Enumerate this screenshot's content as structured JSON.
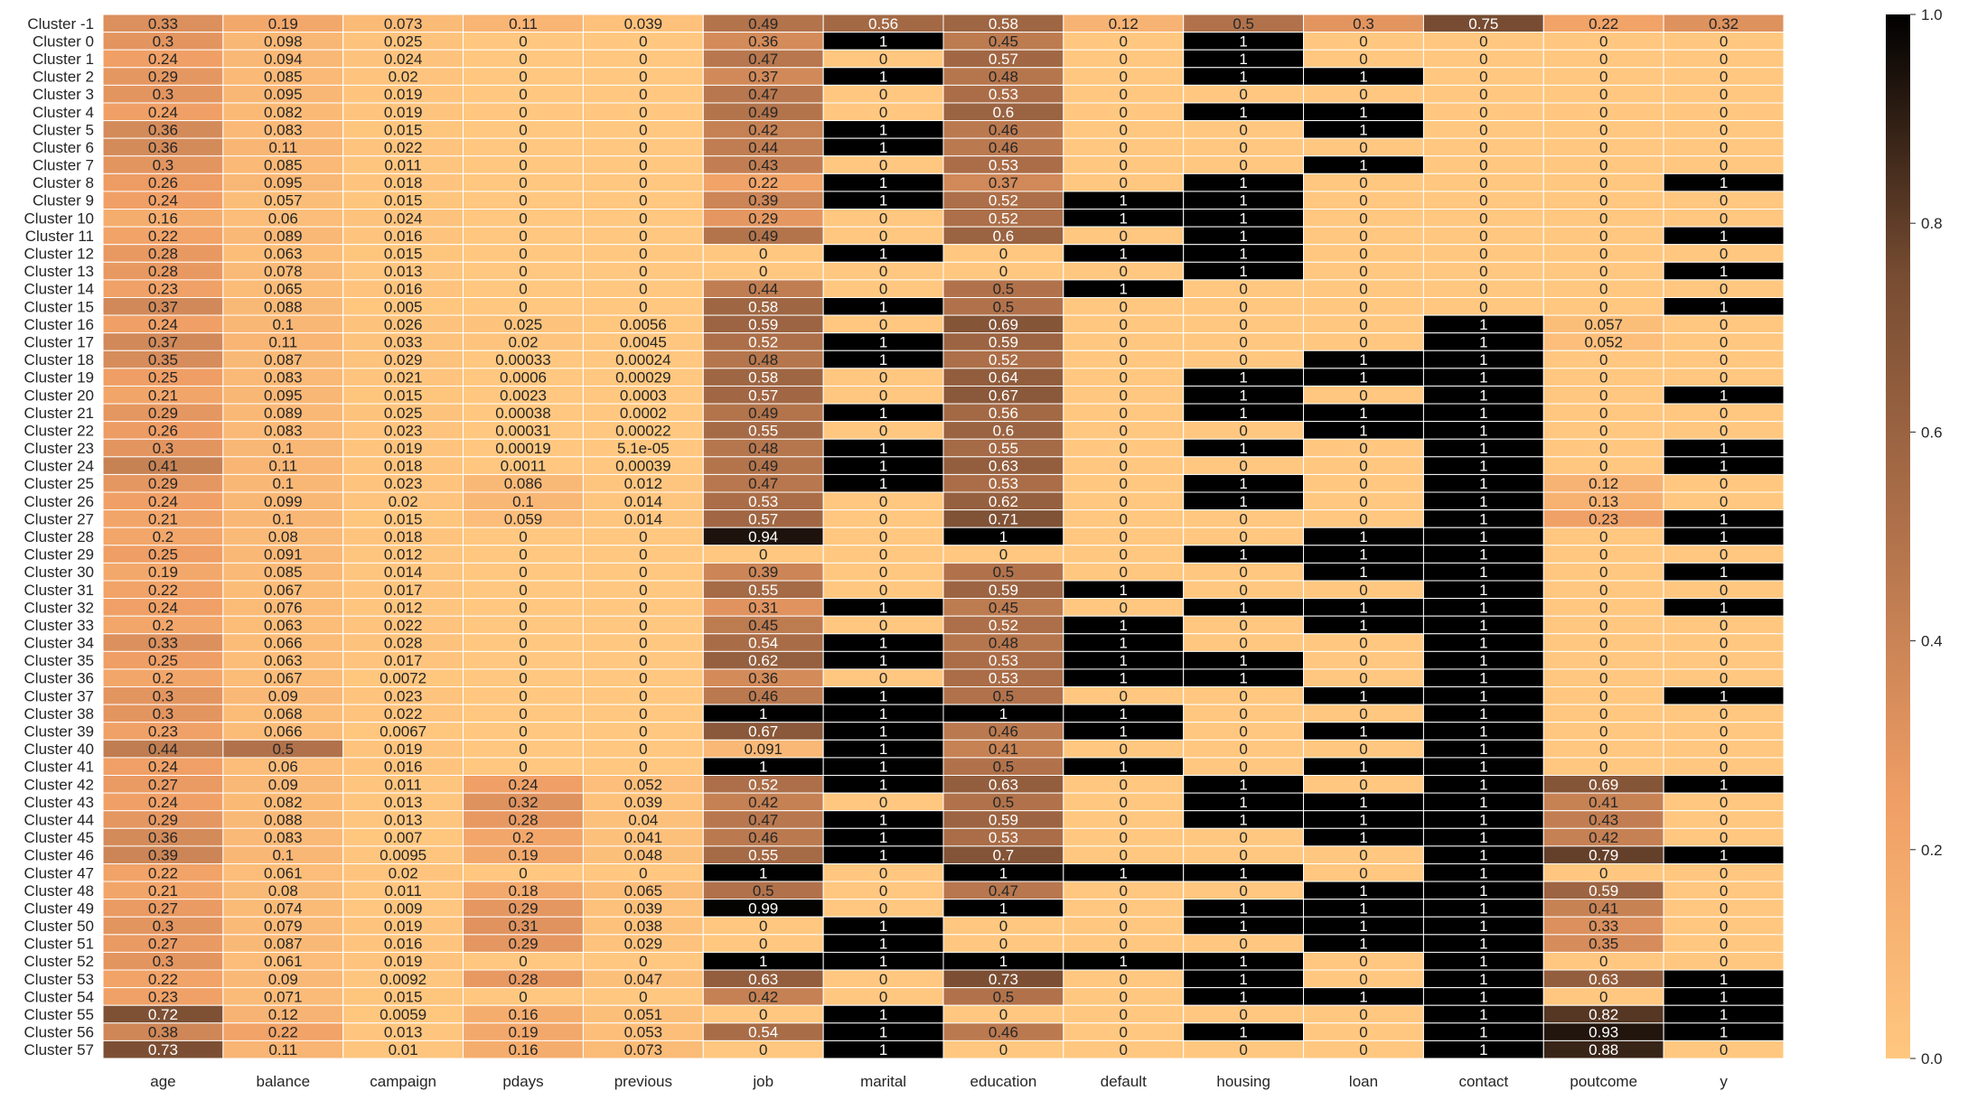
{
  "chart_data": {
    "type": "heatmap",
    "title": "",
    "xlabel": "",
    "ylabel": "",
    "columns": [
      "age",
      "balance",
      "campaign",
      "pdays",
      "previous",
      "job",
      "marital",
      "education",
      "default",
      "housing",
      "loan",
      "contact",
      "poutcome",
      "y"
    ],
    "rows": [
      "Cluster -1",
      "Cluster 0",
      "Cluster 1",
      "Cluster 2",
      "Cluster 3",
      "Cluster 4",
      "Cluster 5",
      "Cluster 6",
      "Cluster 7",
      "Cluster 8",
      "Cluster 9",
      "Cluster 10",
      "Cluster 11",
      "Cluster 12",
      "Cluster 13",
      "Cluster 14",
      "Cluster 15",
      "Cluster 16",
      "Cluster 17",
      "Cluster 18",
      "Cluster 19",
      "Cluster 20",
      "Cluster 21",
      "Cluster 22",
      "Cluster 23",
      "Cluster 24",
      "Cluster 25",
      "Cluster 26",
      "Cluster 27",
      "Cluster 28",
      "Cluster 29",
      "Cluster 30",
      "Cluster 31",
      "Cluster 32",
      "Cluster 33",
      "Cluster 34",
      "Cluster 35",
      "Cluster 36",
      "Cluster 37",
      "Cluster 38",
      "Cluster 39",
      "Cluster 40",
      "Cluster 41",
      "Cluster 42",
      "Cluster 43",
      "Cluster 44",
      "Cluster 45",
      "Cluster 46",
      "Cluster 47",
      "Cluster 48",
      "Cluster 49",
      "Cluster 50",
      "Cluster 51",
      "Cluster 52",
      "Cluster 53",
      "Cluster 54",
      "Cluster 55",
      "Cluster 56",
      "Cluster 57"
    ],
    "cells": [
      [
        "0.33",
        "0.19",
        "0.073",
        "0.11",
        "0.039",
        "0.49",
        "0.56",
        "0.58",
        "0.12",
        "0.5",
        "0.3",
        "0.75",
        "0.22",
        "0.32"
      ],
      [
        "0.3",
        "0.098",
        "0.025",
        "0",
        "0",
        "0.36",
        "1",
        "0.45",
        "0",
        "1",
        "0",
        "0",
        "0",
        "0"
      ],
      [
        "0.24",
        "0.094",
        "0.024",
        "0",
        "0",
        "0.47",
        "0",
        "0.57",
        "0",
        "1",
        "0",
        "0",
        "0",
        "0"
      ],
      [
        "0.29",
        "0.085",
        "0.02",
        "0",
        "0",
        "0.37",
        "1",
        "0.48",
        "0",
        "1",
        "1",
        "0",
        "0",
        "0"
      ],
      [
        "0.3",
        "0.095",
        "0.019",
        "0",
        "0",
        "0.47",
        "0",
        "0.53",
        "0",
        "0",
        "0",
        "0",
        "0",
        "0"
      ],
      [
        "0.24",
        "0.082",
        "0.019",
        "0",
        "0",
        "0.49",
        "0",
        "0.6",
        "0",
        "1",
        "1",
        "0",
        "0",
        "0"
      ],
      [
        "0.36",
        "0.083",
        "0.015",
        "0",
        "0",
        "0.42",
        "1",
        "0.46",
        "0",
        "0",
        "1",
        "0",
        "0",
        "0"
      ],
      [
        "0.36",
        "0.11",
        "0.022",
        "0",
        "0",
        "0.44",
        "1",
        "0.46",
        "0",
        "0",
        "0",
        "0",
        "0",
        "0"
      ],
      [
        "0.3",
        "0.085",
        "0.011",
        "0",
        "0",
        "0.43",
        "0",
        "0.53",
        "0",
        "0",
        "1",
        "0",
        "0",
        "0"
      ],
      [
        "0.26",
        "0.095",
        "0.018",
        "0",
        "0",
        "0.22",
        "1",
        "0.37",
        "0",
        "1",
        "0",
        "0",
        "0",
        "1"
      ],
      [
        "0.24",
        "0.057",
        "0.015",
        "0",
        "0",
        "0.39",
        "1",
        "0.52",
        "1",
        "1",
        "0",
        "0",
        "0",
        "0"
      ],
      [
        "0.16",
        "0.06",
        "0.024",
        "0",
        "0",
        "0.29",
        "0",
        "0.52",
        "1",
        "1",
        "0",
        "0",
        "0",
        "0"
      ],
      [
        "0.22",
        "0.089",
        "0.016",
        "0",
        "0",
        "0.49",
        "0",
        "0.6",
        "0",
        "1",
        "0",
        "0",
        "0",
        "1"
      ],
      [
        "0.28",
        "0.063",
        "0.015",
        "0",
        "0",
        "0",
        "1",
        "0",
        "1",
        "1",
        "0",
        "0",
        "0",
        "0"
      ],
      [
        "0.28",
        "0.078",
        "0.013",
        "0",
        "0",
        "0",
        "0",
        "0",
        "0",
        "1",
        "0",
        "0",
        "0",
        "1"
      ],
      [
        "0.23",
        "0.065",
        "0.016",
        "0",
        "0",
        "0.44",
        "0",
        "0.5",
        "1",
        "0",
        "0",
        "0",
        "0",
        "0"
      ],
      [
        "0.37",
        "0.088",
        "0.005",
        "0",
        "0",
        "0.58",
        "1",
        "0.5",
        "0",
        "0",
        "0",
        "0",
        "0",
        "1"
      ],
      [
        "0.24",
        "0.1",
        "0.026",
        "0.025",
        "0.0056",
        "0.59",
        "0",
        "0.69",
        "0",
        "0",
        "0",
        "1",
        "0.057",
        "0"
      ],
      [
        "0.37",
        "0.11",
        "0.033",
        "0.02",
        "0.0045",
        "0.52",
        "1",
        "0.59",
        "0",
        "0",
        "0",
        "1",
        "0.052",
        "0"
      ],
      [
        "0.35",
        "0.087",
        "0.029",
        "0.00033",
        "0.00024",
        "0.48",
        "1",
        "0.52",
        "0",
        "0",
        "1",
        "1",
        "0",
        "0"
      ],
      [
        "0.25",
        "0.083",
        "0.021",
        "0.0006",
        "0.00029",
        "0.58",
        "0",
        "0.64",
        "0",
        "1",
        "1",
        "1",
        "0",
        "0"
      ],
      [
        "0.21",
        "0.095",
        "0.015",
        "0.0023",
        "0.0003",
        "0.57",
        "0",
        "0.67",
        "0",
        "1",
        "0",
        "1",
        "0",
        "1"
      ],
      [
        "0.29",
        "0.089",
        "0.025",
        "0.00038",
        "0.0002",
        "0.49",
        "1",
        "0.56",
        "0",
        "1",
        "1",
        "1",
        "0",
        "0"
      ],
      [
        "0.26",
        "0.083",
        "0.023",
        "0.00031",
        "0.00022",
        "0.55",
        "0",
        "0.6",
        "0",
        "0",
        "1",
        "1",
        "0",
        "0"
      ],
      [
        "0.3",
        "0.1",
        "0.019",
        "0.00019",
        "5.1e-05",
        "0.48",
        "1",
        "0.55",
        "0",
        "1",
        "0",
        "1",
        "0",
        "1"
      ],
      [
        "0.41",
        "0.11",
        "0.018",
        "0.0011",
        "0.00039",
        "0.49",
        "1",
        "0.63",
        "0",
        "0",
        "0",
        "1",
        "0",
        "1"
      ],
      [
        "0.29",
        "0.1",
        "0.023",
        "0.086",
        "0.012",
        "0.47",
        "1",
        "0.53",
        "0",
        "1",
        "0",
        "1",
        "0.12",
        "0"
      ],
      [
        "0.24",
        "0.099",
        "0.02",
        "0.1",
        "0.014",
        "0.53",
        "0",
        "0.62",
        "0",
        "1",
        "0",
        "1",
        "0.13",
        "0"
      ],
      [
        "0.21",
        "0.1",
        "0.015",
        "0.059",
        "0.014",
        "0.57",
        "0",
        "0.71",
        "0",
        "0",
        "0",
        "1",
        "0.23",
        "1"
      ],
      [
        "0.2",
        "0.08",
        "0.018",
        "0",
        "0",
        "0.94",
        "0",
        "1",
        "0",
        "0",
        "1",
        "1",
        "0",
        "1"
      ],
      [
        "0.25",
        "0.091",
        "0.012",
        "0",
        "0",
        "0",
        "0",
        "0",
        "0",
        "1",
        "1",
        "1",
        "0",
        "0"
      ],
      [
        "0.19",
        "0.085",
        "0.014",
        "0",
        "0",
        "0.39",
        "0",
        "0.5",
        "0",
        "0",
        "1",
        "1",
        "0",
        "1"
      ],
      [
        "0.22",
        "0.067",
        "0.017",
        "0",
        "0",
        "0.55",
        "0",
        "0.59",
        "1",
        "0",
        "0",
        "1",
        "0",
        "0"
      ],
      [
        "0.24",
        "0.076",
        "0.012",
        "0",
        "0",
        "0.31",
        "1",
        "0.45",
        "0",
        "1",
        "1",
        "1",
        "0",
        "1"
      ],
      [
        "0.2",
        "0.063",
        "0.022",
        "0",
        "0",
        "0.45",
        "0",
        "0.52",
        "1",
        "0",
        "1",
        "1",
        "0",
        "0"
      ],
      [
        "0.33",
        "0.066",
        "0.028",
        "0",
        "0",
        "0.54",
        "1",
        "0.48",
        "1",
        "0",
        "0",
        "1",
        "0",
        "0"
      ],
      [
        "0.25",
        "0.063",
        "0.017",
        "0",
        "0",
        "0.62",
        "1",
        "0.53",
        "1",
        "1",
        "0",
        "1",
        "0",
        "0"
      ],
      [
        "0.2",
        "0.067",
        "0.0072",
        "0",
        "0",
        "0.36",
        "0",
        "0.53",
        "1",
        "1",
        "0",
        "1",
        "0",
        "0"
      ],
      [
        "0.3",
        "0.09",
        "0.023",
        "0",
        "0",
        "0.46",
        "1",
        "0.5",
        "0",
        "0",
        "1",
        "1",
        "0",
        "1"
      ],
      [
        "0.3",
        "0.068",
        "0.022",
        "0",
        "0",
        "1",
        "1",
        "1",
        "1",
        "0",
        "0",
        "1",
        "0",
        "0"
      ],
      [
        "0.23",
        "0.066",
        "0.0067",
        "0",
        "0",
        "0.67",
        "1",
        "0.46",
        "1",
        "0",
        "1",
        "1",
        "0",
        "0"
      ],
      [
        "0.44",
        "0.5",
        "0.019",
        "0",
        "0",
        "0.091",
        "1",
        "0.41",
        "0",
        "0",
        "0",
        "1",
        "0",
        "0"
      ],
      [
        "0.24",
        "0.06",
        "0.016",
        "0",
        "0",
        "1",
        "1",
        "0.5",
        "1",
        "0",
        "1",
        "1",
        "0",
        "0"
      ],
      [
        "0.27",
        "0.09",
        "0.011",
        "0.24",
        "0.052",
        "0.52",
        "1",
        "0.63",
        "0",
        "1",
        "0",
        "1",
        "0.69",
        "1"
      ],
      [
        "0.24",
        "0.082",
        "0.013",
        "0.32",
        "0.039",
        "0.42",
        "0",
        "0.5",
        "0",
        "1",
        "1",
        "1",
        "0.41",
        "0"
      ],
      [
        "0.29",
        "0.088",
        "0.013",
        "0.28",
        "0.04",
        "0.47",
        "1",
        "0.59",
        "0",
        "1",
        "1",
        "1",
        "0.43",
        "0"
      ],
      [
        "0.36",
        "0.083",
        "0.007",
        "0.2",
        "0.041",
        "0.46",
        "1",
        "0.53",
        "0",
        "0",
        "1",
        "1",
        "0.42",
        "0"
      ],
      [
        "0.39",
        "0.1",
        "0.0095",
        "0.19",
        "0.048",
        "0.55",
        "1",
        "0.7",
        "0",
        "0",
        "0",
        "1",
        "0.79",
        "1"
      ],
      [
        "0.22",
        "0.061",
        "0.02",
        "0",
        "0",
        "1",
        "0",
        "1",
        "1",
        "1",
        "0",
        "1",
        "0",
        "0"
      ],
      [
        "0.21",
        "0.08",
        "0.011",
        "0.18",
        "0.065",
        "0.5",
        "0",
        "0.47",
        "0",
        "0",
        "1",
        "1",
        "0.59",
        "0"
      ],
      [
        "0.27",
        "0.074",
        "0.009",
        "0.29",
        "0.039",
        "0.99",
        "0",
        "1",
        "0",
        "1",
        "1",
        "1",
        "0.41",
        "0"
      ],
      [
        "0.3",
        "0.079",
        "0.019",
        "0.31",
        "0.038",
        "0",
        "1",
        "0",
        "0",
        "1",
        "1",
        "1",
        "0.33",
        "0"
      ],
      [
        "0.27",
        "0.087",
        "0.016",
        "0.29",
        "0.029",
        "0",
        "1",
        "0",
        "0",
        "0",
        "1",
        "1",
        "0.35",
        "0"
      ],
      [
        "0.3",
        "0.061",
        "0.019",
        "0",
        "0",
        "1",
        "1",
        "1",
        "1",
        "1",
        "0",
        "1",
        "0",
        "0"
      ],
      [
        "0.22",
        "0.09",
        "0.0092",
        "0.28",
        "0.047",
        "0.63",
        "0",
        "0.73",
        "0",
        "1",
        "0",
        "1",
        "0.63",
        "1"
      ],
      [
        "0.23",
        "0.071",
        "0.015",
        "0",
        "0",
        "0.42",
        "0",
        "0.5",
        "0",
        "1",
        "1",
        "1",
        "0",
        "1"
      ],
      [
        "0.72",
        "0.12",
        "0.0059",
        "0.16",
        "0.051",
        "0",
        "1",
        "0",
        "0",
        "0",
        "0",
        "1",
        "0.82",
        "1"
      ],
      [
        "0.38",
        "0.22",
        "0.013",
        "0.19",
        "0.053",
        "0.54",
        "1",
        "0.46",
        "0",
        "1",
        "0",
        "1",
        "0.93",
        "1"
      ],
      [
        "0.73",
        "0.11",
        "0.01",
        "0.16",
        "0.073",
        "0",
        "1",
        "0",
        "0",
        "0",
        "0",
        "1",
        "0.88",
        "0"
      ]
    ],
    "vmin": 0,
    "vmax": 1,
    "colormap": "copper_r",
    "colors": {
      "low": "#FFC77F",
      "mid": "#B1724B",
      "high": "#000000",
      "gridline": "#FFFFFF"
    },
    "colorbar": {
      "ticks": [
        "0.0",
        "0.2",
        "0.4",
        "0.6",
        "0.8",
        "1.0"
      ],
      "tick_values": [
        0,
        0.2,
        0.4,
        0.6,
        0.8,
        1.0
      ]
    },
    "grid": true,
    "legend": "colorbar-right"
  }
}
